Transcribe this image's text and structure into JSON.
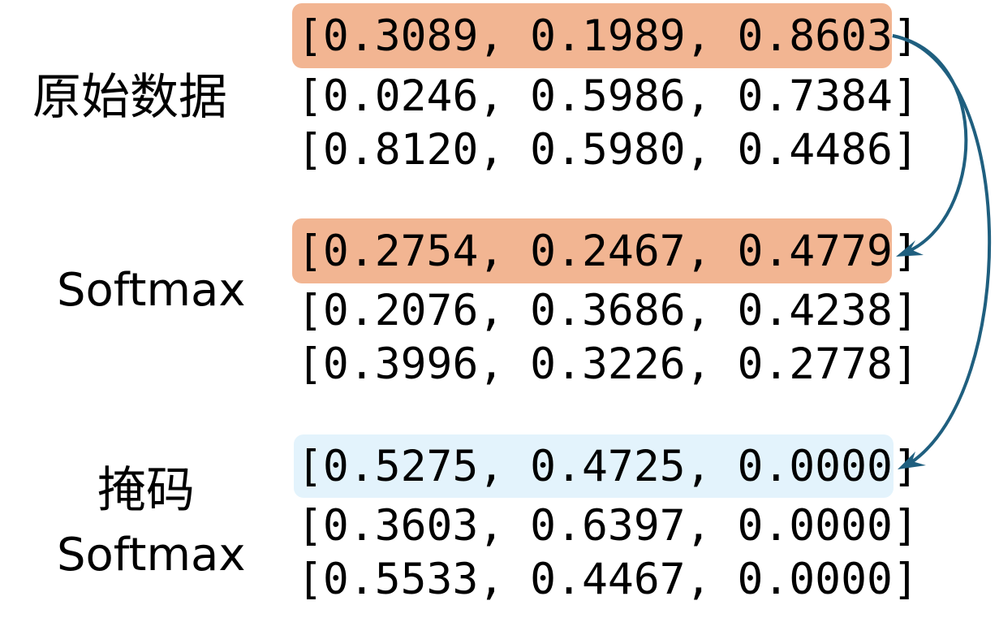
{
  "colors": {
    "highlight_orange": "#f2b592",
    "highlight_blue": "#e3f3fc",
    "arrow": "#1f5f7f",
    "text": "#000000"
  },
  "sections": [
    {
      "id": "raw",
      "label_lines": [
        "原始数据"
      ],
      "rows": [
        "[0.3089, 0.1989, 0.8603]",
        "[0.0246, 0.5986, 0.7384]",
        "[0.8120, 0.5980, 0.4486]"
      ],
      "highlight_row": 0,
      "highlight_color": "#f2b592"
    },
    {
      "id": "softmax",
      "label_lines": [
        "Softmax"
      ],
      "rows": [
        "[0.2754, 0.2467, 0.4779]",
        "[0.2076, 0.3686, 0.4238]",
        "[0.3996, 0.3226, 0.2778]"
      ],
      "highlight_row": 0,
      "highlight_color": "#f2b592"
    },
    {
      "id": "masked-softmax",
      "label_lines": [
        "掩码",
        "Softmax"
      ],
      "rows": [
        "[0.5275, 0.4725, 0.0000]",
        "[0.3603, 0.6397, 0.0000]",
        "[0.5533, 0.4467, 0.0000]"
      ],
      "highlight_row": 0,
      "highlight_color": "#e3f3fc"
    }
  ]
}
